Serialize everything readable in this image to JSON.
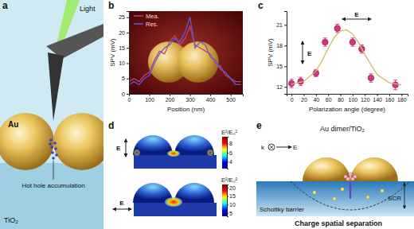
{
  "chart_data": [
    {
      "type": "line",
      "title": "b",
      "x": [
        0,
        25,
        50,
        75,
        100,
        125,
        150,
        175,
        200,
        225,
        250,
        275,
        300,
        325,
        350,
        375,
        400,
        425,
        450,
        475,
        500,
        525,
        550
      ],
      "series": [
        {
          "name": "Mea.",
          "color": "#c2407a",
          "values": [
            4,
            5,
            4,
            6,
            7,
            11,
            14,
            13,
            17,
            19,
            16,
            18,
            22,
            16,
            15,
            14,
            13,
            10,
            9,
            6,
            5,
            4,
            4
          ]
        },
        {
          "name": "Res.",
          "color": "#5b5bd6",
          "values": [
            3,
            4,
            3,
            5,
            6,
            10,
            13,
            15,
            16,
            18,
            17,
            20,
            25,
            15,
            17,
            16,
            12,
            11,
            8,
            7,
            5,
            3,
            3
          ]
        }
      ],
      "xlabel": "Position (nm)",
      "ylabel": "SPV (mV)",
      "xlim": [
        0,
        560
      ],
      "ylim": [
        0,
        27
      ],
      "xticks": [
        0,
        100,
        200,
        300,
        400,
        500
      ],
      "yticks": [
        0,
        5,
        10,
        15,
        20,
        25
      ],
      "legend": "upper left"
    },
    {
      "type": "scatter",
      "title": "c",
      "series": [
        {
          "type": "scatter",
          "color": "#d63384",
          "marker": "circle",
          "x": [
            0,
            15,
            40,
            55,
            75,
            100,
            115,
            130,
            170
          ],
          "values": [
            12.5,
            12.8,
            14,
            18.5,
            20.5,
            18.5,
            17.5,
            13.3,
            12.3
          ],
          "errors": [
            0.6,
            0.6,
            0.5,
            0.6,
            0.6,
            0.6,
            0.6,
            0.6,
            0.7
          ]
        },
        {
          "type": "line",
          "color": "#d4b86a",
          "x": [
            0,
            20,
            40,
            50,
            60,
            70,
            80,
            90,
            100,
            110,
            120,
            140,
            160,
            180
          ],
          "values": [
            12.4,
            12.8,
            14.3,
            15.8,
            17.6,
            19.2,
            20.1,
            20.3,
            19.7,
            18.4,
            16.7,
            13.8,
            12.6,
            12.3
          ]
        }
      ],
      "xlabel": "Polarization angle (degree)",
      "ylabel": "SPV (mV)",
      "xlim": [
        -8,
        190
      ],
      "ylim": [
        11,
        23
      ],
      "xticks": [
        0,
        20,
        40,
        60,
        80,
        100,
        120,
        140,
        160,
        180
      ],
      "yticks": [
        12,
        15,
        18,
        21
      ],
      "annotations": [
        "E",
        "E"
      ]
    }
  ],
  "diagrams": {
    "a": {
      "label": "a",
      "light": "Light",
      "au": "Au",
      "hot_hole": "Hot hole accumulation",
      "tio2": "TiO₂"
    },
    "d": {
      "label": "d",
      "top": {
        "field": "E",
        "colorbar_title": "E²/E₀²",
        "colorbar_range": [
          2.5,
          9.5
        ],
        "colorbar_ticks": [
          4,
          6,
          8
        ]
      },
      "bottom": {
        "field": "E",
        "colorbar_title": "E²/E₀²",
        "colorbar_range": [
          3,
          22
        ],
        "colorbar_ticks": [
          5,
          10,
          15,
          20
        ]
      }
    },
    "e": {
      "label": "e",
      "title": "Au dimer/TiO₂",
      "k": "k",
      "field": "E",
      "scr": "SCR",
      "schottky": "Schottky barrier",
      "caption": "Charge spatial separation"
    }
  }
}
